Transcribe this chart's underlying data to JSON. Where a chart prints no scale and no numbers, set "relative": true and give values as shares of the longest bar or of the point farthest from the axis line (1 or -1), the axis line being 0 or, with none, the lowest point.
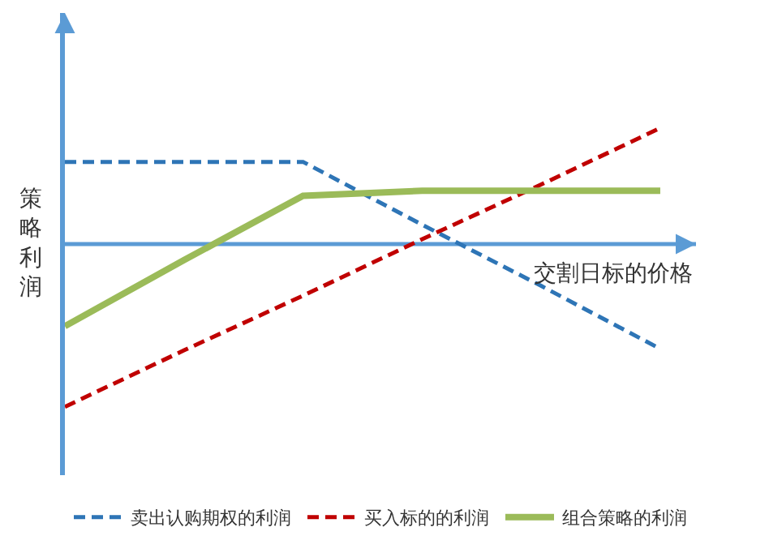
{
  "chart_data": {
    "type": "line",
    "relative": true,
    "ylabel": "策略利润",
    "xlabel": "交割日标的价格",
    "categories": [
      null,
      null,
      null,
      null,
      null,
      null
    ],
    "series": [
      {
        "name": "卖出认购期权的利润",
        "color": "#2e75b6",
        "line_style": "dashed",
        "values": [
          0.505,
          0.505,
          0.505,
          0.119,
          -0.257,
          -0.644
        ]
      },
      {
        "name": "买入标的的利润",
        "color": "#c00000",
        "line_style": "dashed",
        "values": [
          -1,
          -0.653,
          -0.317,
          0.03,
          0.366,
          0.713
        ]
      },
      {
        "name": "组合策略的利润",
        "color": "#9bbb59",
        "line_style": "solid",
        "values": [
          -0.505,
          -0.099,
          0.297,
          0.327,
          0.327,
          0.327
        ]
      }
    ],
    "ref_lines": [
      {
        "axis": "y",
        "value": 0,
        "color": "#5b9bd5"
      }
    ],
    "legend": "bottom",
    "marker": "none"
  }
}
